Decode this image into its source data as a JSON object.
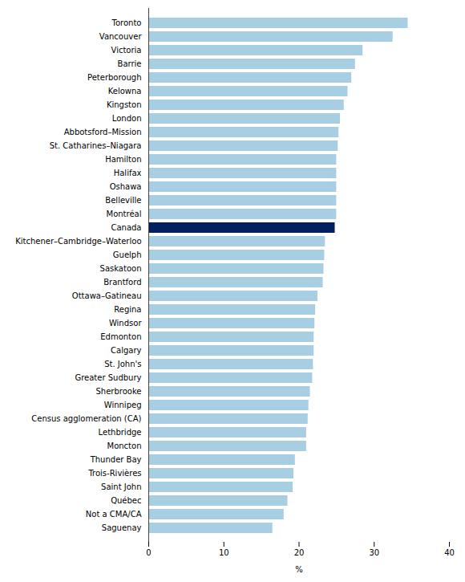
{
  "chart_data": {
    "type": "bar",
    "orientation": "horizontal",
    "categories": [
      "Toronto",
      "Vancouver",
      "Victoria",
      "Barrie",
      "Peterborough",
      "Kelowna",
      "Kingston",
      "London",
      "Abbotsford–Mission",
      "St. Catharines–Niagara",
      "Hamilton",
      "Halifax",
      "Oshawa",
      "Belleville",
      "Montréal",
      "Canada",
      "Kitchener–Cambridge–Waterloo",
      "Guelph",
      "Saskatoon",
      "Brantford",
      "Ottawa–Gatineau",
      "Regina",
      "Windsor",
      "Edmonton",
      "Calgary",
      "St. John's",
      "Greater Sudbury",
      "Sherbrooke",
      "Winnipeg",
      "Census agglomeration (CA)",
      "Lethbridge",
      "Moncton",
      "Thunder Bay",
      "Trois-Rivières",
      "Saint John",
      "Québec",
      "Not a CMA/CA",
      "Saguenay"
    ],
    "values": [
      34.5,
      32.5,
      28.5,
      27.5,
      27.0,
      26.5,
      26.0,
      25.5,
      25.3,
      25.2,
      25.0,
      25.0,
      25.0,
      25.0,
      25.0,
      24.8,
      23.5,
      23.4,
      23.3,
      23.2,
      22.5,
      22.2,
      22.1,
      22.0,
      22.0,
      21.9,
      21.8,
      21.5,
      21.3,
      21.2,
      21.0,
      21.0,
      19.5,
      19.3,
      19.2,
      18.5,
      18.0,
      16.5
    ],
    "colors": [
      "#A8CEE4",
      "#A8CEE4",
      "#A8CEE4",
      "#A8CEE4",
      "#A8CEE4",
      "#A8CEE4",
      "#A8CEE4",
      "#A8CEE4",
      "#A8CEE4",
      "#A8CEE4",
      "#A8CEE4",
      "#A8CEE4",
      "#A8CEE4",
      "#A8CEE4",
      "#A8CEE4",
      "#002060",
      "#A8CEE4",
      "#A8CEE4",
      "#A8CEE4",
      "#A8CEE4",
      "#A8CEE4",
      "#A8CEE4",
      "#A8CEE4",
      "#A8CEE4",
      "#A8CEE4",
      "#A8CEE4",
      "#A8CEE4",
      "#A8CEE4",
      "#A8CEE4",
      "#A8CEE4",
      "#A8CEE4",
      "#A8CEE4",
      "#A8CEE4",
      "#A8CEE4",
      "#A8CEE4",
      "#A8CEE4",
      "#A8CEE4",
      "#A8CEE4"
    ],
    "xlabel": "%",
    "xlim": [
      0,
      40
    ],
    "xticks": [
      0,
      10,
      20,
      30,
      40
    ],
    "grid": false
  }
}
